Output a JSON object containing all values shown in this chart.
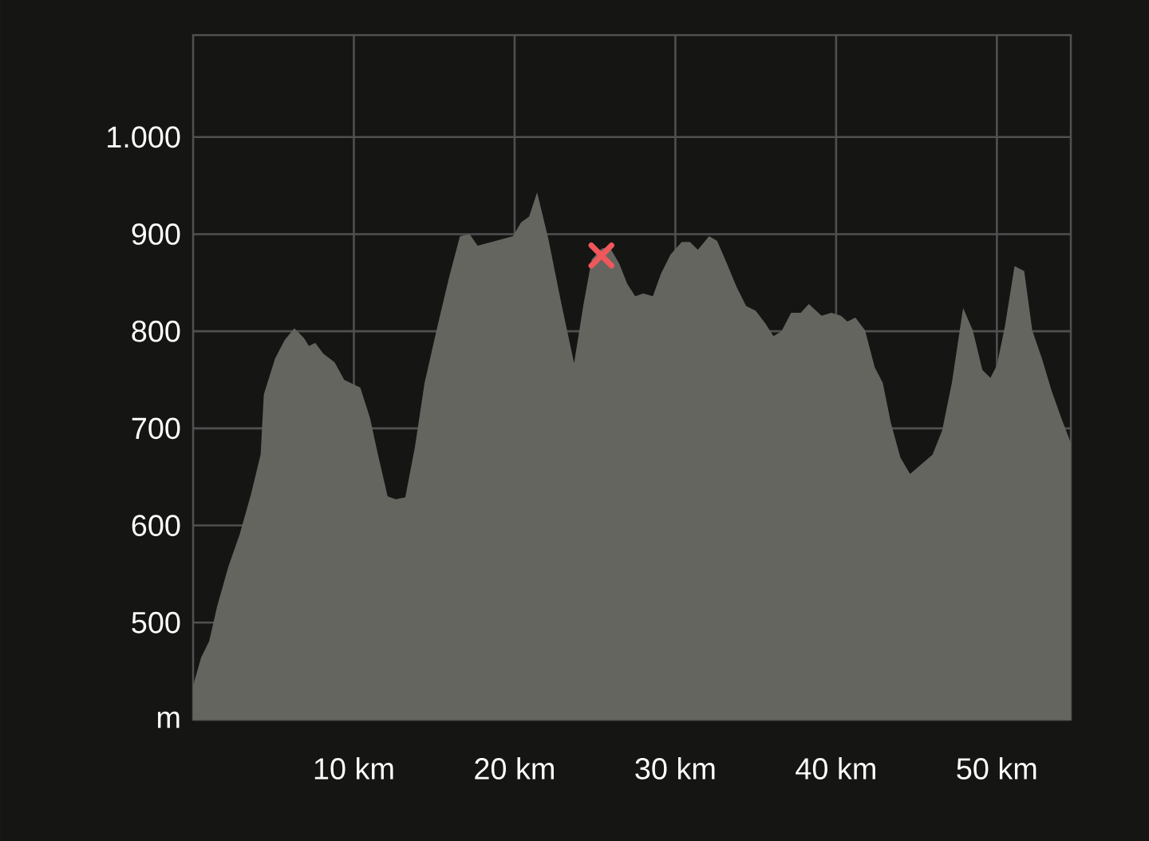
{
  "chart_data": {
    "type": "area",
    "xlim": [
      0,
      54.6
    ],
    "ylim": [
      400,
      1105
    ],
    "grid": true,
    "xticks": [
      {
        "value": 10,
        "label": "10 km"
      },
      {
        "value": 20,
        "label": "20 km"
      },
      {
        "value": 30,
        "label": "30 km"
      },
      {
        "value": 40,
        "label": "40 km"
      },
      {
        "value": 50,
        "label": "50 km"
      }
    ],
    "yticks": [
      {
        "value": 400,
        "label": "m"
      },
      500,
      600,
      700,
      800,
      900,
      {
        "value": 1000,
        "label": "1.000"
      }
    ],
    "x": [
      0,
      0.5,
      1.0,
      1.5,
      2.2,
      2.9,
      3.6,
      4.2,
      4.4,
      5.1,
      5.7,
      6.3,
      6.9,
      7.2,
      7.6,
      8.1,
      8.8,
      9.4,
      10.4,
      11.0,
      11.5,
      12.1,
      12.6,
      13.2,
      13.8,
      14.4,
      15.2,
      15.9,
      16.6,
      17.2,
      17.7,
      18.8,
      19.9,
      20.4,
      20.9,
      21.4,
      22.1,
      22.9,
      23.7,
      24.3,
      24.8,
      25.4,
      25.9,
      26.5,
      27.0,
      27.5,
      28.0,
      28.6,
      29.1,
      29.7,
      30.4,
      30.9,
      31.4,
      32.1,
      32.6,
      33.2,
      33.8,
      34.4,
      35.0,
      35.6,
      36.1,
      36.6,
      37.2,
      37.8,
      38.3,
      39.1,
      39.7,
      40.3,
      40.7,
      41.2,
      41.8,
      42.4,
      42.9,
      43.4,
      44.0,
      44.6,
      45.3,
      46.0,
      46.6,
      47.2,
      47.9,
      48.5,
      49.1,
      49.6,
      50.0,
      50.5,
      51.1,
      51.7,
      52.2,
      52.8,
      53.4,
      54.0,
      54.6
    ],
    "series": [
      {
        "color": "#656560",
        "values": [
          435,
          464,
          481,
          517,
          558,
          591,
          632,
          673,
          735,
          772,
          791,
          803,
          793,
          785,
          788,
          777,
          768,
          750,
          742,
          711,
          673,
          630,
          627,
          629,
          681,
          747,
          805,
          854,
          898,
          900,
          888,
          893,
          898,
          912,
          918,
          943,
          895,
          829,
          767,
          829,
          874,
          885,
          887,
          870,
          849,
          836,
          839,
          836,
          859,
          879,
          892,
          892,
          884,
          898,
          893,
          870,
          846,
          826,
          821,
          808,
          795,
          800,
          819,
          819,
          828,
          816,
          819,
          816,
          810,
          814,
          801,
          763,
          747,
          706,
          670,
          653,
          663,
          673,
          698,
          747,
          824,
          801,
          760,
          752,
          765,
          805,
          867,
          862,
          801,
          772,
          739,
          711,
          685
        ]
      },
      {
        "type": "scatter",
        "x": [
          25.4
        ],
        "values": [
          878
        ],
        "color": "#f0575a",
        "marker": "cross"
      }
    ]
  }
}
